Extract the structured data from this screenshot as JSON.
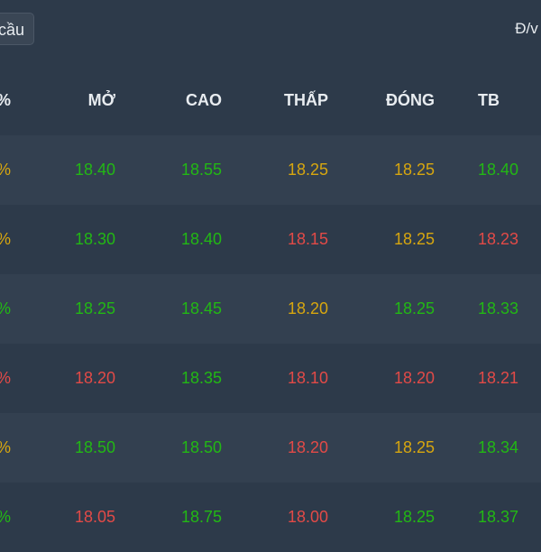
{
  "toolbar": {
    "filter_label": "cầu",
    "unit_label": "Đ/v k"
  },
  "table": {
    "headers": [
      "%",
      "MỞ",
      "CAO",
      "THẤP",
      "ĐÓNG",
      "TB"
    ],
    "rows": [
      {
        "pct": "%",
        "mo": "18.40",
        "cao": "18.55",
        "thap": "18.25",
        "dong": "18.25",
        "tb": "18.40",
        "colors": [
          "yellow",
          "green",
          "green",
          "yellow",
          "yellow",
          "green"
        ]
      },
      {
        "pct": "%",
        "mo": "18.30",
        "cao": "18.40",
        "thap": "18.15",
        "dong": "18.25",
        "tb": "18.23",
        "colors": [
          "yellow",
          "green",
          "green",
          "red",
          "yellow",
          "red"
        ]
      },
      {
        "pct": "%",
        "mo": "18.25",
        "cao": "18.45",
        "thap": "18.20",
        "dong": "18.25",
        "tb": "18.33",
        "colors": [
          "green",
          "green",
          "green",
          "yellow",
          "green",
          "green"
        ]
      },
      {
        "pct": "%",
        "mo": "18.20",
        "cao": "18.35",
        "thap": "18.10",
        "dong": "18.20",
        "tb": "18.21",
        "colors": [
          "red",
          "red",
          "green",
          "red",
          "red",
          "red"
        ]
      },
      {
        "pct": "%",
        "mo": "18.50",
        "cao": "18.50",
        "thap": "18.20",
        "dong": "18.25",
        "tb": "18.34",
        "colors": [
          "yellow",
          "green",
          "green",
          "red",
          "yellow",
          "green"
        ]
      },
      {
        "pct": "%",
        "mo": "18.05",
        "cao": "18.75",
        "thap": "18.00",
        "dong": "18.25",
        "tb": "18.37",
        "colors": [
          "green",
          "red",
          "green",
          "red",
          "green",
          "green"
        ]
      }
    ]
  }
}
